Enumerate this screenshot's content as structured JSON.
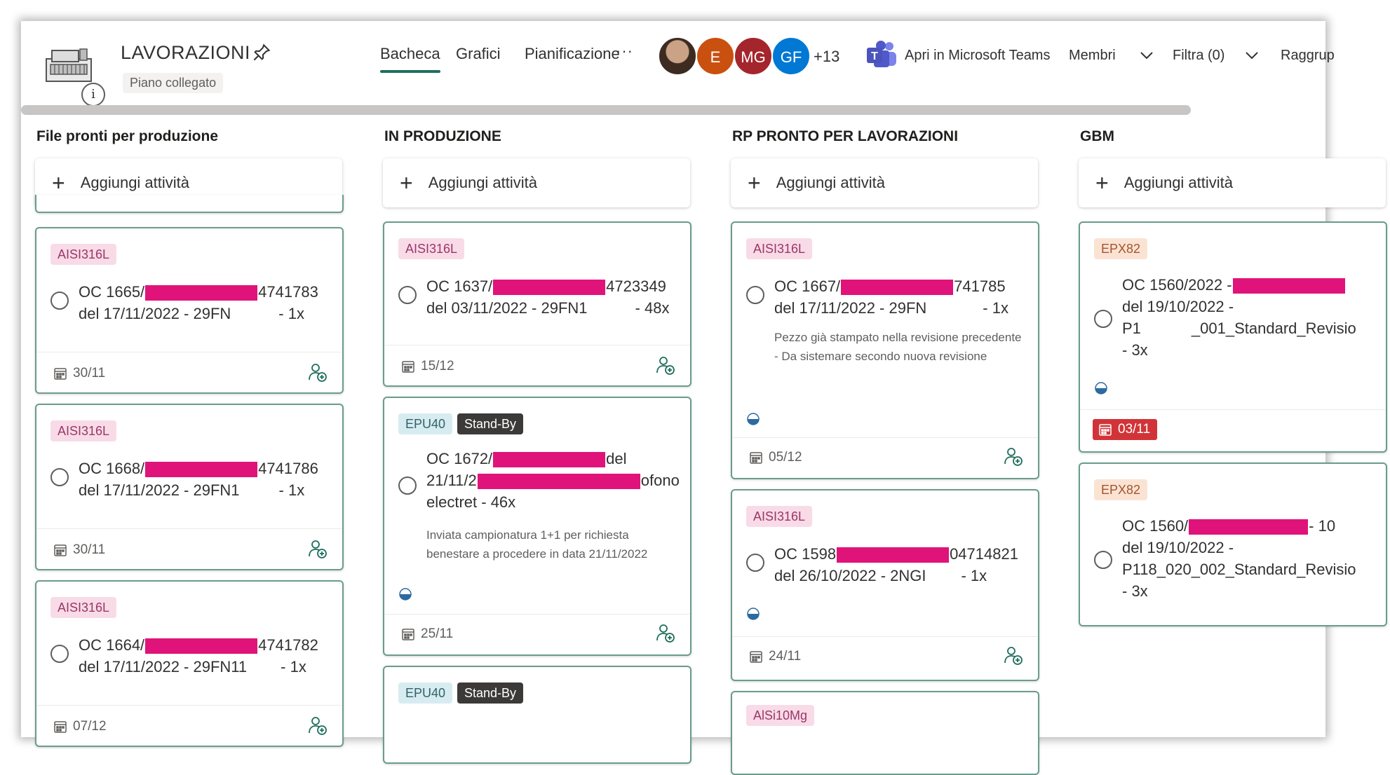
{
  "header": {
    "plan_title": "LAVORAZIONI",
    "plan_badge": "Piano collegato",
    "tabs": [
      {
        "label": "Bacheca",
        "active": true
      },
      {
        "label": "Grafici",
        "active": false
      },
      {
        "label": "Pianificazione",
        "active": false
      }
    ],
    "more": "···",
    "avatars": [
      {
        "initials": "",
        "color": "#5a3d2e",
        "type": "photo"
      },
      {
        "initials": "E",
        "color": "#ca5010"
      },
      {
        "initials": "MG",
        "color": "#a4262c"
      },
      {
        "initials": "GF",
        "color": "#0078d4"
      }
    ],
    "more_members": "+13",
    "teams_label": "Apri in Microsoft Teams",
    "members_label": "Membri",
    "filter_label": "Filtra (0)",
    "group_label": "Raggrup"
  },
  "colors": {
    "accent": "#1f6e5c",
    "card_border": "#6a9c8d",
    "redaction": "#e0137a",
    "overdue": "#d13438"
  },
  "board": {
    "add_task_label": "Aggiungi attività",
    "columns": [
      {
        "title": "File pronti per produzione",
        "cards": [
          {
            "labels": [
              "AISI316L"
            ],
            "title_a": "OC 1665/",
            "title_b": "4741783",
            "title_line2": "del 17/11/2022 - 29FN",
            "qty": "- 1x",
            "due": "30/11"
          },
          {
            "labels": [
              "AISI316L"
            ],
            "title_a": "OC 1668/",
            "title_b": "4741786",
            "title_line2": "del 17/11/2022 - 29FN1",
            "qty": "- 1x",
            "due": "30/11"
          },
          {
            "labels": [
              "AISI316L"
            ],
            "title_a": "OC 1664/",
            "title_b": "4741782",
            "title_line2": "del 17/11/2022 - 29FN11",
            "qty": "- 1x",
            "due": "07/12"
          }
        ]
      },
      {
        "title": "IN PRODUZIONE",
        "cards": [
          {
            "labels": [
              "AISI316L"
            ],
            "title_a": "OC 1637/",
            "title_b": "4723349",
            "title_line2": "del 03/11/2022 - 29FN1",
            "qty": "- 48x",
            "due": "15/12"
          },
          {
            "labels": [
              "EPU40",
              "Stand-By"
            ],
            "title_a": "OC 1672/",
            "title_b": "del",
            "title_line2_a": "21/11/2",
            "title_line2_b": "ofono",
            "title_line3": "electret - 46x",
            "note": "Inviata campionatura 1+1 per richiesta benestare a procedere in data 21/11/2022",
            "due": "25/11"
          },
          {
            "labels": [
              "EPU40",
              "Stand-By"
            ]
          }
        ]
      },
      {
        "title": "RP PRONTO PER LAVORAZIONI",
        "cards": [
          {
            "labels": [
              "AISI316L"
            ],
            "title_a": "OC 1667/",
            "title_b": "741785",
            "title_line2": "del 17/11/2022 - 29FN",
            "qty": "- 1x",
            "note": "Pezzo già stampato nella revisione precedente - Da sistemare secondo nuova revisione",
            "due": "05/12"
          },
          {
            "labels": [
              "AISI316L"
            ],
            "title_a": "OC 1598",
            "title_b": "04714821",
            "title_line2": "del 26/10/2022 - 2NGI",
            "qty": "- 1x",
            "due": "24/11"
          },
          {
            "labels": [
              "AlSi10Mg"
            ]
          }
        ]
      },
      {
        "title": "GBM",
        "cards": [
          {
            "labels": [
              "EPX82"
            ],
            "title_a": "OC 1560/2022 -",
            "title_line2": "del 19/10/2022 -",
            "title_line3": "P1",
            "title_line3_b": "_001_Standard_Revisio",
            "title_line4": "- 3x",
            "due": "03/11"
          },
          {
            "labels": [
              "EPX82"
            ],
            "title_a": "OC 1560/",
            "title_b": "- 10",
            "title_line2": "del 19/10/2022 -",
            "title_line3": "P118_020_002_Standard_Revisio",
            "title_line4": "- 3x"
          }
        ]
      }
    ]
  }
}
